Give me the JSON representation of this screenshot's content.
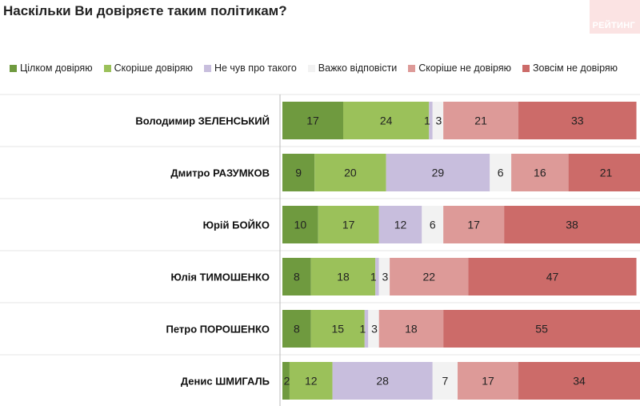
{
  "chart_data": {
    "type": "bar",
    "orientation": "horizontal",
    "stacked": true,
    "title": "Наскільки Ви довіряєте таким політикам?",
    "categories": [
      "Володимир ЗЕЛЕНСЬКИЙ",
      "Дмитро РАЗУМКОВ",
      "Юрій БОЙКО",
      "Юлія ТИМОШЕНКО",
      "Петро ПОРОШЕНКО",
      "Денис ШМИГАЛЬ"
    ],
    "series": [
      {
        "name": "Цілком довіряю",
        "color": "#6f9a3f",
        "values": [
          17,
          9,
          10,
          8,
          8,
          2
        ]
      },
      {
        "name": "Скоріше довіряю",
        "color": "#9bc15a",
        "values": [
          24,
          20,
          17,
          18,
          15,
          12
        ]
      },
      {
        "name": "Не чув про такого",
        "color": "#c8bedd",
        "values": [
          1,
          29,
          12,
          1,
          1,
          28
        ]
      },
      {
        "name": "Важко відповісти",
        "color": "#f2f2f2",
        "values": [
          3,
          6,
          6,
          3,
          3,
          7
        ]
      },
      {
        "name": "Скоріше не довіряю",
        "color": "#dd9a98",
        "values": [
          21,
          16,
          17,
          22,
          18,
          17
        ]
      },
      {
        "name": "Зовсім не довіряю",
        "color": "#cc6b69",
        "values": [
          33,
          21,
          38,
          47,
          55,
          34
        ]
      }
    ],
    "data_labels": [
      [
        "17",
        "24",
        "1",
        "3",
        "21",
        "33"
      ],
      [
        "9",
        "20",
        "29",
        "6",
        "16",
        "21"
      ],
      [
        "10",
        "17",
        "12",
        "6",
        "17",
        "38"
      ],
      [
        "8",
        "18",
        "1",
        "3",
        "22",
        "47"
      ],
      [
        "8",
        "15",
        "1",
        "3",
        "18",
        "55"
      ],
      [
        "2",
        "12",
        "28",
        "7",
        "17",
        "34"
      ]
    ],
    "xlim": [
      0,
      100
    ],
    "legend_position": "top",
    "grid": false
  },
  "branding": {
    "logo_text": "РЕЙТИНГ"
  }
}
